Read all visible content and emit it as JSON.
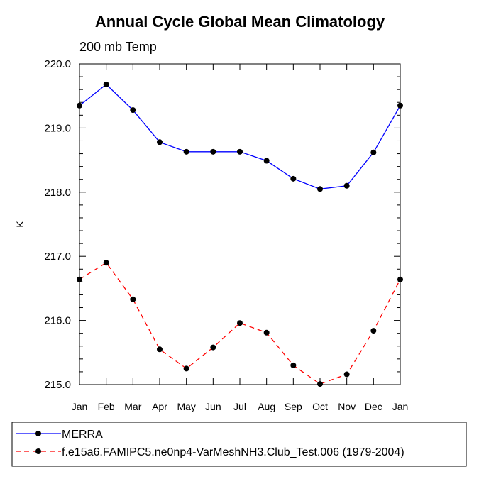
{
  "chart_data": {
    "type": "line",
    "title": "Annual Cycle Global Mean Climatology",
    "subtitle": "200 mb Temp",
    "ylabel": "K",
    "xlabel": "",
    "categories": [
      "Jan",
      "Feb",
      "Mar",
      "Apr",
      "May",
      "Jun",
      "Jul",
      "Aug",
      "Sep",
      "Oct",
      "Nov",
      "Dec",
      "Jan"
    ],
    "ylim": [
      215.0,
      220.0
    ],
    "yticks": [
      "215.0",
      "216.0",
      "217.0",
      "218.0",
      "219.0",
      "220.0"
    ],
    "grid": false,
    "legend_position": "bottom",
    "series": [
      {
        "name": "MERRA",
        "color": "#0000ff",
        "dash": "solid",
        "marker": "circle",
        "values": [
          219.35,
          219.68,
          219.28,
          218.78,
          218.63,
          218.63,
          218.63,
          218.49,
          218.21,
          218.05,
          218.1,
          218.62,
          219.35
        ]
      },
      {
        "name": "f.e15a6.FAMIPC5.ne0np4-VarMeshNH3.Club_Test.006 (1979-2004)",
        "color": "#ff0000",
        "dash": "dashed",
        "marker": "circle",
        "values": [
          216.64,
          216.9,
          216.33,
          215.55,
          215.25,
          215.58,
          215.96,
          215.81,
          215.3,
          215.01,
          215.16,
          215.84,
          216.64
        ]
      }
    ]
  }
}
